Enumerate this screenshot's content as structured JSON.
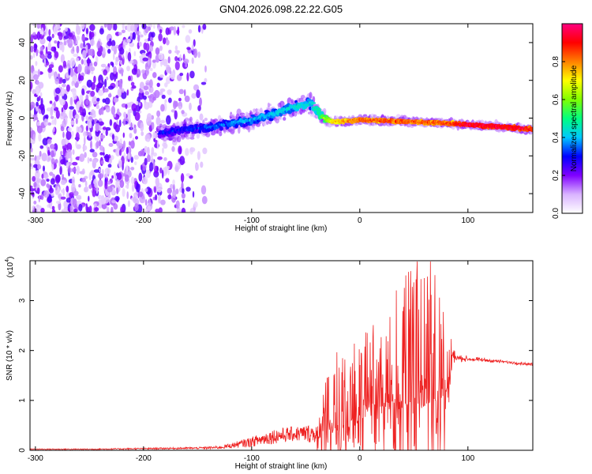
{
  "title": "GN04.2026.098.22.22.G05",
  "chart_data": [
    {
      "type": "heatmap",
      "xlabel": "Height of straight line (km)",
      "ylabel": "Frequency (Hz)",
      "xlim": [
        -305,
        160
      ],
      "ylim": [
        -50,
        50
      ],
      "x_ticks": [
        -300,
        -200,
        -100,
        0,
        100
      ],
      "y_ticks": [
        -40,
        -20,
        0,
        20,
        40
      ],
      "colorbar": {
        "label": "Normalized spectral amplitude",
        "range": [
          0,
          1
        ],
        "ticks": [
          0.0,
          0.2,
          0.4,
          0.6,
          0.8
        ],
        "tick_labels": [
          "0.0",
          "0.2",
          "0.4",
          "0.6",
          "0.8"
        ],
        "colors": [
          "#ffffff",
          "#d9b3ff",
          "#8000ff",
          "#0000ff",
          "#00c8ff",
          "#00ff80",
          "#80ff00",
          "#ffff00",
          "#ff8000",
          "#ff0000",
          "#ff0080"
        ]
      },
      "ridge": {
        "x": [
          -185,
          -160,
          -140,
          -120,
          -100,
          -80,
          -60,
          -45,
          -35,
          -25,
          0,
          25,
          50,
          75,
          100,
          125,
          150,
          160
        ],
        "y": [
          -8,
          -6,
          -5,
          -3,
          -1,
          2,
          6,
          8,
          1,
          -2,
          -1,
          -1.5,
          -2,
          -2.5,
          -3.5,
          -4.5,
          -5.5,
          -6
        ],
        "amplitude": [
          0.3,
          0.32,
          0.35,
          0.38,
          0.4,
          0.42,
          0.45,
          0.45,
          0.55,
          0.75,
          0.85,
          0.88,
          0.86,
          0.85,
          0.95,
          0.97,
          0.95,
          0.9
        ]
      },
      "noise_region_x": [
        -305,
        -150
      ]
    },
    {
      "type": "line",
      "xlabel": "Height of straight line (km)",
      "ylabel": "SNR (10 * v/v)",
      "y_multiplier": "(x10",
      "y_multiplier_exp": "4",
      "xlim": [
        -305,
        160
      ],
      "ylim": [
        0,
        3.8
      ],
      "x_ticks": [
        -300,
        -200,
        -100,
        0,
        100
      ],
      "y_ticks": [
        0,
        1,
        2,
        3
      ],
      "series_color": "#ee2222",
      "envelope": {
        "x": [
          -305,
          -250,
          -200,
          -150,
          -130,
          -120,
          -100,
          -80,
          -60,
          -40,
          -30,
          -20,
          -10,
          0,
          10,
          20,
          30,
          40,
          50,
          60,
          70,
          80,
          85,
          90,
          100,
          120,
          140,
          160
        ],
        "y": [
          0.02,
          0.02,
          0.03,
          0.04,
          0.05,
          0.08,
          0.15,
          0.25,
          0.3,
          0.3,
          0.8,
          0.9,
          1.05,
          1.2,
          1.4,
          1.55,
          1.7,
          1.8,
          1.9,
          1.95,
          1.9,
          1.85,
          1.9,
          1.85,
          1.83,
          1.8,
          1.76,
          1.72
        ],
        "spread": [
          0.01,
          0.01,
          0.015,
          0.02,
          0.03,
          0.05,
          0.1,
          0.15,
          0.15,
          0.2,
          0.6,
          0.9,
          0.8,
          0.8,
          0.9,
          1.0,
          1.2,
          1.5,
          1.6,
          1.7,
          1.5,
          1.1,
          0.4,
          0.1,
          0.08,
          0.06,
          0.05,
          0.05
        ]
      }
    }
  ]
}
